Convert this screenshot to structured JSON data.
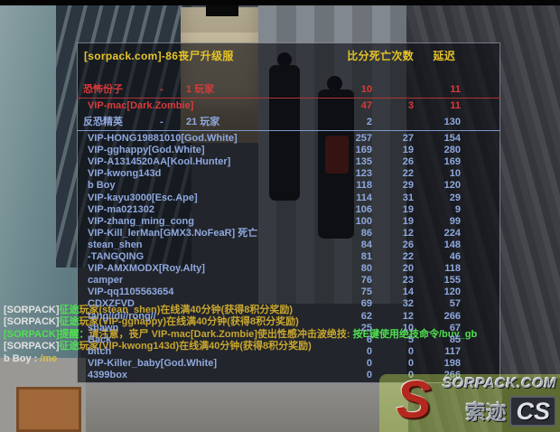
{
  "scoreboard": {
    "title": "[sorpack.com]-86丧尸升级服",
    "columns": {
      "score_deaths": "比分死亡次数",
      "latency": "延迟"
    },
    "teams": [
      {
        "name": "恐怖份子",
        "separator": "-",
        "count_label": "1 玩家",
        "score": "10",
        "latency": "11",
        "players": [
          {
            "name": "VIP-mac[Dark.Zombie]",
            "score": "47",
            "deaths": "3",
            "latency": "11"
          }
        ]
      },
      {
        "name": "反恐精英",
        "separator": "-",
        "count_label": "21 玩家",
        "score": "2",
        "latency": "130",
        "players": [
          {
            "name": "VIP-HONG19881010[God.White]",
            "score": "257",
            "deaths": "27",
            "latency": "154"
          },
          {
            "name": "VIP-gghappy[God.White]",
            "score": "169",
            "deaths": "19",
            "latency": "280"
          },
          {
            "name": "VIP-A1314520AA[Kool.Hunter]",
            "score": "135",
            "deaths": "26",
            "latency": "169"
          },
          {
            "name": "VIP-kwong143d",
            "score": "123",
            "deaths": "22",
            "latency": "10"
          },
          {
            "name": "b Boy",
            "score": "118",
            "deaths": "29",
            "latency": "120"
          },
          {
            "name": "VIP-kayu3000[Esc.Ape]",
            "score": "114",
            "deaths": "31",
            "latency": "29"
          },
          {
            "name": "VIP-ma021302",
            "score": "106",
            "deaths": "19",
            "latency": "9"
          },
          {
            "name": "VIP-zhang_ming_cong",
            "score": "100",
            "deaths": "19",
            "latency": "99"
          },
          {
            "name": "VIP-Kill_lerMan[GMX3.NoFeaR] 死亡",
            "score": "86",
            "deaths": "12",
            "latency": "224"
          },
          {
            "name": "stean_shen",
            "score": "84",
            "deaths": "26",
            "latency": "148"
          },
          {
            "name": "-TANGQING",
            "score": "81",
            "deaths": "22",
            "latency": "46"
          },
          {
            "name": "VIP-AMXMODX[Roy.Alty]",
            "score": "80",
            "deaths": "20",
            "latency": "118"
          },
          {
            "name": "camper",
            "score": "76",
            "deaths": "23",
            "latency": "155"
          },
          {
            "name": "VIP-qq1105563654",
            "score": "75",
            "deaths": "14",
            "latency": "120"
          },
          {
            "name": "CDXZFVD",
            "score": "69",
            "deaths": "32",
            "latency": "57"
          },
          {
            "name": "tang//di//rong//",
            "score": "62",
            "deaths": "12",
            "latency": "266"
          },
          {
            "name": "shawn",
            "score": "25",
            "deaths": "10",
            "latency": "67"
          },
          {
            "name": "Back",
            "score": "6",
            "deaths": "5",
            "latency": "85"
          },
          {
            "name": "bitch",
            "score": "0",
            "deaths": "0",
            "latency": "117"
          },
          {
            "name": "VIP-Killer_baby[God.White]",
            "score": "0",
            "deaths": "0",
            "latency": "198"
          },
          {
            "name": "4399box",
            "score": "0",
            "deaths": "0",
            "latency": "266"
          }
        ]
      }
    ]
  },
  "chat": {
    "lines": [
      [
        {
          "t": "[SORPACK]",
          "c": "white"
        },
        {
          "t": "征途",
          "c": "green"
        },
        {
          "t": "玩家(stean_shen)在线满40分钟(获得8积分奖励)",
          "c": "gold"
        }
      ],
      [
        {
          "t": "[SORPACK]",
          "c": "white"
        },
        {
          "t": "征途",
          "c": "green"
        },
        {
          "t": "玩家(VIP-gghappy)在线满40分钟(获得8积分奖励)",
          "c": "gold"
        }
      ],
      [
        {
          "t": "[SORPACK]提醒：",
          "c": "green"
        },
        {
          "t": "请注意，丧尸 VIP-mac[Dark.Zombie]使出性感冲击波绝技: ",
          "c": "gold"
        },
        {
          "t": "按E键使用绝技命令/buy_gb",
          "c": "green"
        }
      ],
      [
        {
          "t": "[SORPACK]",
          "c": "white"
        },
        {
          "t": "征途",
          "c": "green"
        },
        {
          "t": "玩家(VIP-kwong143d)在线满40分钟(获得8积分奖励)",
          "c": "gold"
        }
      ],
      [
        {
          "t": "b Boy : ",
          "c": "white"
        },
        {
          "t": "/me",
          "c": "yellow"
        }
      ]
    ]
  },
  "watermark": {
    "badge_letter": "S",
    "site": "SORPACK.COM",
    "cn": "索迹",
    "cs": "CS"
  },
  "colors": {
    "terrorist_red": "#d93a3a",
    "ct_blue": "#8fa8de",
    "gold": "#e6c428",
    "chat_green": "#4fe14f",
    "chat_gold": "#c9a72e"
  }
}
